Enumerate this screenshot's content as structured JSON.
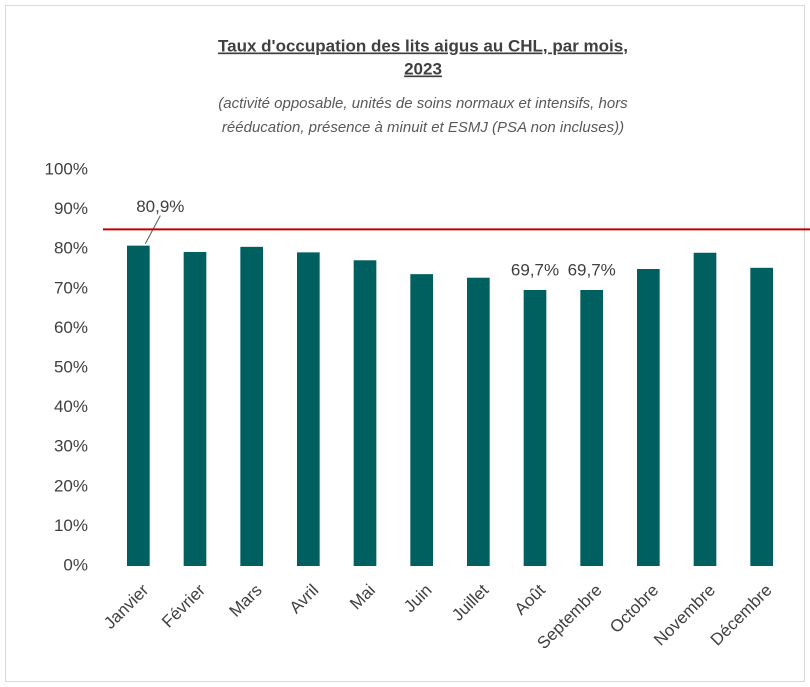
{
  "chart_data": {
    "type": "bar",
    "title": [
      "Taux d'occupation des lits aigus au CHL, par mois,",
      "2023"
    ],
    "subtitle": [
      "(activité opposable, unités de soins normaux et intensifs, hors",
      "rééducation, présence à minuit et ESMJ (PSA non incluses))"
    ],
    "categories": [
      "Janvier",
      "Février",
      "Mars",
      "Avril",
      "Mai",
      "Juin",
      "Juillet",
      "Août",
      "Septembre",
      "Octobre",
      "Novembre",
      "Décembre"
    ],
    "values": [
      80.9,
      79.3,
      80.6,
      79.2,
      77.2,
      73.7,
      72.8,
      69.7,
      69.7,
      75.0,
      79.1,
      75.3
    ],
    "value_labels": [
      "80,9%",
      null,
      null,
      null,
      null,
      null,
      null,
      "69,7%",
      "69,7%",
      null,
      null,
      null
    ],
    "color": "#006060",
    "reference_line": {
      "value": 85,
      "color": "#c00000"
    },
    "ylim": [
      0,
      100
    ],
    "yticks": [
      {
        "value": 0,
        "label": "0%"
      },
      {
        "value": 10,
        "label": "10%"
      },
      {
        "value": 20,
        "label": "20%"
      },
      {
        "value": 30,
        "label": "30%"
      },
      {
        "value": 40,
        "label": "40%"
      },
      {
        "value": 50,
        "label": "50%"
      },
      {
        "value": 60,
        "label": "60%"
      },
      {
        "value": 70,
        "label": "70%"
      },
      {
        "value": 80,
        "label": "80%"
      },
      {
        "value": 90,
        "label": "90%"
      },
      {
        "value": 100,
        "label": "100%"
      }
    ],
    "grid": false
  }
}
